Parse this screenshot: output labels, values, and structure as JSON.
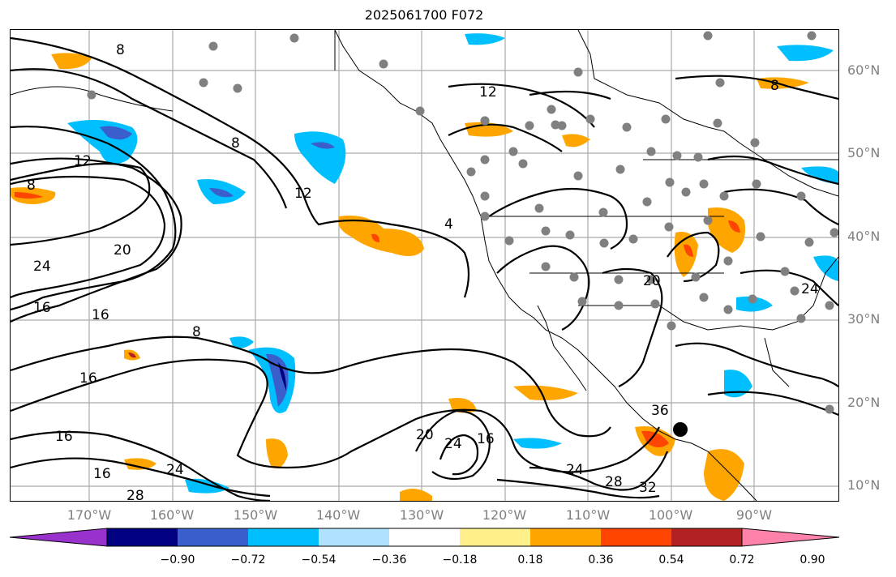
{
  "title": "2025061700 F072",
  "lat_labels": [
    "60°N",
    "50°N",
    "40°N",
    "30°N",
    "20°N",
    "10°N"
  ],
  "lon_labels": [
    "170°W",
    "160°W",
    "150°W",
    "140°W",
    "130°W",
    "120°W",
    "110°W",
    "100°W",
    "90°W"
  ],
  "colorbar": {
    "ticks": [
      "−0.90",
      "−0.72",
      "−0.54",
      "−0.36",
      "−0.18",
      "0.18",
      "0.36",
      "0.54",
      "0.72",
      "0.90"
    ],
    "colors": [
      "#9932cc",
      "#000080",
      "#3a5fcd",
      "#00bfff",
      "#b0e2ff",
      "#ffffff",
      "#fff08c",
      "#ffa500",
      "#ff4500",
      "#b22222",
      "#ff82ab"
    ]
  },
  "contour_labels": [
    "8",
    "8",
    "8",
    "8",
    "12",
    "12",
    "12",
    "16",
    "16",
    "16",
    "16",
    "16",
    "16",
    "20",
    "20",
    "20",
    "24",
    "24",
    "24",
    "24",
    "24",
    "28",
    "28",
    "32",
    "4",
    "36",
    "8"
  ],
  "colors": {
    "contour": "#000000",
    "grid": "#a9a9a9",
    "station": "#808080",
    "orange": "#ffa500",
    "red": "#ff4500",
    "darkred": "#b22222",
    "lightblue": "#b0e2ff",
    "blue": "#00bfff",
    "royal": "#3a5fcd",
    "navy": "#000080"
  }
}
